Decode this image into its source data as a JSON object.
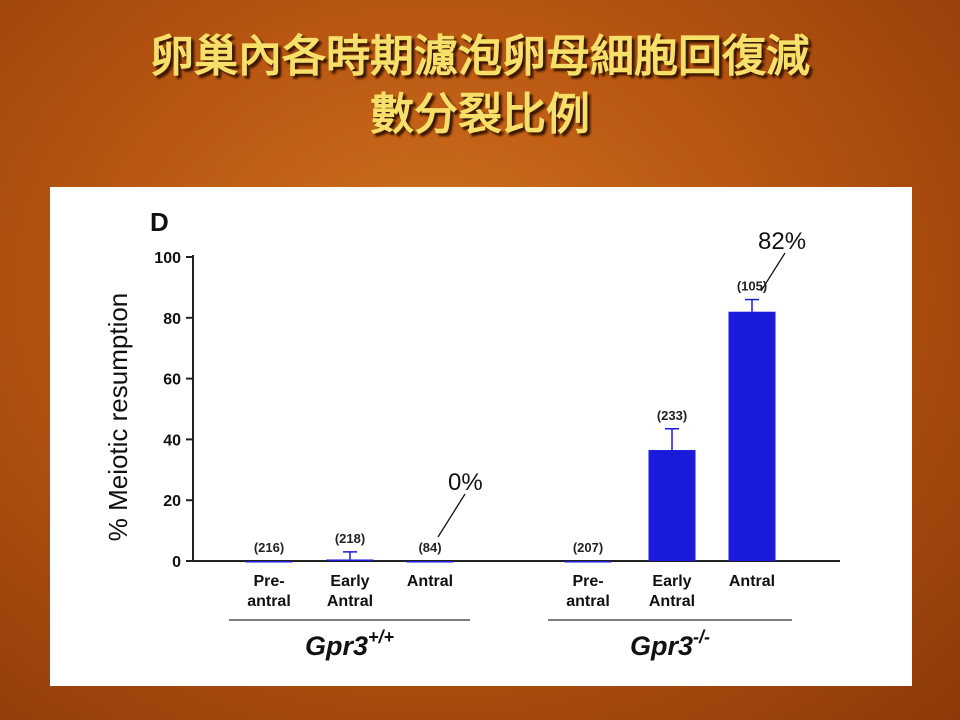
{
  "slide": {
    "title_line1": "卵巢內各時期濾泡卵母細胞回復減",
    "title_line2": "數分裂比例"
  },
  "chart_data": {
    "type": "bar",
    "panel_label": "D",
    "ylabel": "% Meiotic resumption",
    "ylim": [
      0,
      100
    ],
    "yticks": [
      0,
      20,
      40,
      60,
      80,
      100
    ],
    "bar_color": "#1a1adb",
    "groups": [
      {
        "name": "Gpr3",
        "superscript": "+/+",
        "bars": [
          {
            "label_line1": "Pre-",
            "label_line2": "antral",
            "value": 0,
            "error": 0,
            "n_label": "(216)"
          },
          {
            "label_line1": "Early",
            "label_line2": "Antral",
            "value": 0.5,
            "error": 2.5,
            "n_label": "(218)"
          },
          {
            "label_line1": "Antral",
            "label_line2": "",
            "value": 0,
            "error": 0,
            "n_label": "(84)"
          }
        ]
      },
      {
        "name": "Gpr3",
        "superscript": "-/-",
        "bars": [
          {
            "label_line1": "Pre-",
            "label_line2": "antral",
            "value": 0,
            "error": 0,
            "n_label": "(207)"
          },
          {
            "label_line1": "Early",
            "label_line2": "Antral",
            "value": 36.5,
            "error": 7,
            "n_label": "(233)"
          },
          {
            "label_line1": "Antral",
            "label_line2": "",
            "value": 82,
            "error": 4,
            "n_label": "(105)"
          }
        ]
      }
    ],
    "annotations": [
      {
        "text": "0%",
        "group": 0,
        "bar": 2
      },
      {
        "text": "82%",
        "group": 1,
        "bar": 2
      }
    ]
  }
}
